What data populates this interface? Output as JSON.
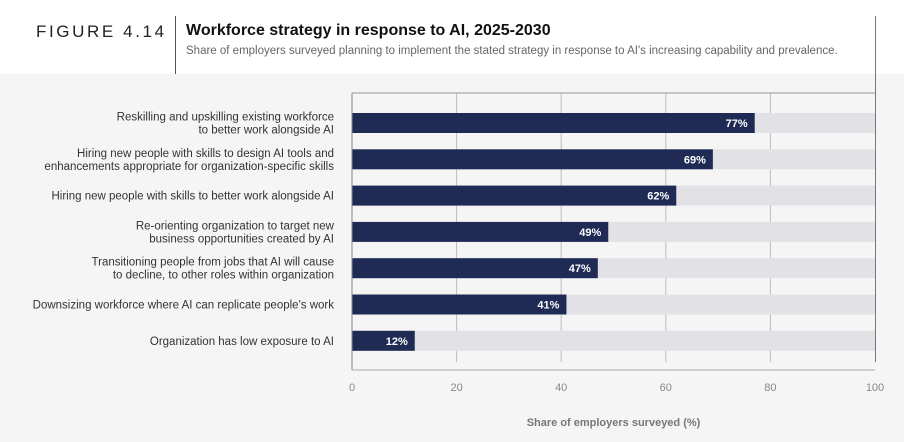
{
  "figure_label": "FIGURE 4.14",
  "title": "Workforce strategy in response to AI, 2025-2030",
  "subtitle": "Share of employers surveyed planning to implement the stated strategy in response to AI's increasing capability and prevalence.",
  "chart_data": {
    "type": "bar",
    "orientation": "horizontal",
    "categories": [
      [
        "Reskilling and upskilling existing workforce",
        "to better work alongside AI"
      ],
      [
        "Hiring new people with skills to design AI tools and",
        "enhancements appropriate for organization-specific skills"
      ],
      [
        "Hiring new people with skills to better work alongside AI"
      ],
      [
        "Re-orienting organization to target new",
        "business opportunities created by AI"
      ],
      [
        "Transitioning people from jobs that AI will cause",
        "to decline, to other roles within organization"
      ],
      [
        "Downsizing workforce where AI can replicate people's work"
      ],
      [
        "Organization has low exposure to AI"
      ]
    ],
    "values": [
      77,
      69,
      62,
      49,
      47,
      41,
      12
    ],
    "value_labels": [
      "77%",
      "69%",
      "62%",
      "49%",
      "47%",
      "41%",
      "12%"
    ],
    "xlim": [
      0,
      100
    ],
    "xticks": [
      0,
      20,
      40,
      60,
      80,
      100
    ],
    "xtick_labels": [
      "0",
      "20",
      "40",
      "60",
      "80",
      "100"
    ],
    "xlabel": "Share of employers surveyed (%)",
    "ylabel": "",
    "grid": true,
    "colors": {
      "bar": "#1f2a55",
      "track": "#e2e2e6",
      "grid": "#bdbdbd"
    }
  }
}
